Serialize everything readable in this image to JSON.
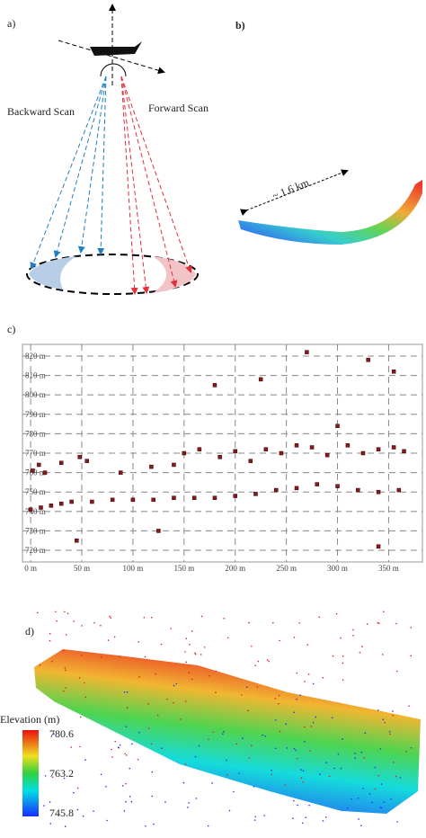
{
  "figure": {
    "panel_a": {
      "label": "a)",
      "backward": "Backward Scan",
      "forward": "Forward Scan"
    },
    "panel_b": {
      "label": "b)",
      "distance": "~ 1.6 km"
    },
    "panel_c": {
      "label": "c)"
    },
    "panel_d": {
      "label": "d)",
      "colorbar_title": "Elevation (m)",
      "colorbar_ticks": [
        "780.6",
        "763.2",
        "745.8"
      ]
    }
  },
  "chart_data": {
    "type": "scatter",
    "x": [
      0,
      10,
      20,
      30,
      40,
      60,
      80,
      100,
      120,
      140,
      160,
      180,
      200,
      220,
      240,
      260,
      280,
      300,
      320,
      340,
      360,
      2,
      8,
      14,
      30,
      48,
      55,
      88,
      118,
      140,
      150,
      165,
      185,
      200,
      215,
      230,
      245,
      260,
      275,
      290,
      310,
      325,
      340,
      355,
      365,
      270,
      330,
      355,
      180,
      225,
      300,
      45,
      125,
      340
    ],
    "values": [
      741,
      742,
      743,
      744,
      745,
      745,
      746,
      746,
      746,
      747,
      747,
      747,
      748,
      749,
      751,
      752,
      754,
      753,
      751,
      750,
      751,
      761,
      764,
      760,
      765,
      768,
      766,
      760,
      763,
      764,
      770,
      772,
      768,
      771,
      766,
      772,
      770,
      774,
      773,
      769,
      774,
      770,
      772,
      773,
      771,
      822,
      818,
      812,
      805,
      808,
      784,
      725,
      730,
      722
    ],
    "color": "#8b1a1a",
    "xlim": [
      -8,
      383
    ],
    "ylim": [
      714,
      826
    ],
    "xticks": [
      {
        "value": 0,
        "label": "0 m"
      },
      {
        "value": 50,
        "label": "50 m"
      },
      {
        "value": 100,
        "label": "100 m"
      },
      {
        "value": 150,
        "label": "150 m"
      },
      {
        "value": 200,
        "label": "200 m"
      },
      {
        "value": 250,
        "label": "250 m"
      },
      {
        "value": 300,
        "label": "300 m"
      },
      {
        "value": 350,
        "label": "350 m"
      }
    ],
    "yticks": [
      {
        "value": 720,
        "label": "720 m"
      },
      {
        "value": 730,
        "label": "730 m"
      },
      {
        "value": 740,
        "label": "740 m"
      },
      {
        "value": 750,
        "label": "750 m"
      },
      {
        "value": 760,
        "label": "760 m"
      },
      {
        "value": 770,
        "label": "770 m"
      },
      {
        "value": 780,
        "label": "780 m"
      },
      {
        "value": 790,
        "label": "790 m"
      },
      {
        "value": 800,
        "label": "800 m"
      },
      {
        "value": 810,
        "label": "810 m"
      },
      {
        "value": 820,
        "label": "820 m"
      }
    ],
    "grid": true
  }
}
